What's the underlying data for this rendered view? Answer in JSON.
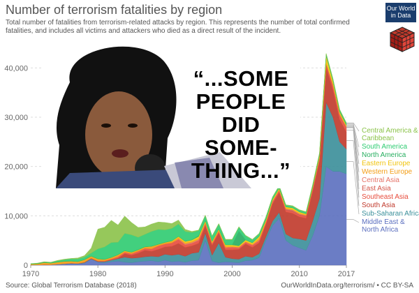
{
  "header": {
    "title": "Number of terrorism fatalities by region",
    "subtitle": "Total number of fatalities from terrorism-related attacks by region. This represents the number of total confirmed fatalities, and includes all victims and attackers who died as a direct result of the incident."
  },
  "logo": {
    "line1": "Our World",
    "line2": "in Data"
  },
  "overlay": {
    "quote_lines": [
      "“...SOME",
      "PEOPLE",
      "DID",
      "SOME-",
      "THING...”"
    ]
  },
  "footer": {
    "source": "Source: Global Terrorism Database (2018)",
    "credit": "OurWorldInData.org/terrorism/ • CC BY-SA"
  },
  "chart_data": {
    "type": "area",
    "stacked": true,
    "title": "Number of terrorism fatalities by region",
    "x_ticks": [
      1970,
      1980,
      1990,
      2000,
      2010,
      2017
    ],
    "y_ticks": [
      0,
      10000,
      20000,
      30000,
      40000
    ],
    "y_tick_labels": [
      "0",
      "10,000",
      "20,000",
      "30,000",
      "40,000"
    ],
    "xlim": [
      1970,
      2017
    ],
    "ylim": [
      0,
      45000
    ],
    "grid": true,
    "legend_position": "right",
    "x": [
      1970,
      1971,
      1972,
      1973,
      1974,
      1975,
      1976,
      1977,
      1978,
      1979,
      1980,
      1981,
      1982,
      1983,
      1984,
      1985,
      1986,
      1987,
      1988,
      1989,
      1990,
      1991,
      1992,
      1993,
      1994,
      1995,
      1996,
      1997,
      1998,
      1999,
      2000,
      2001,
      2002,
      2003,
      2004,
      2005,
      2006,
      2007,
      2008,
      2009,
      2010,
      2011,
      2012,
      2013,
      2014,
      2015,
      2016,
      2017
    ],
    "series": [
      {
        "name": "Middle East & North Africa",
        "color": "#5b6fbf",
        "values": [
          20,
          30,
          80,
          60,
          150,
          200,
          300,
          250,
          400,
          1200,
          600,
          500,
          700,
          800,
          600,
          500,
          700,
          800,
          900,
          700,
          1000,
          700,
          800,
          600,
          900,
          1000,
          5000,
          800,
          500,
          700,
          600,
          500,
          900,
          1000,
          1500,
          5000,
          8000,
          9500,
          5000,
          4000,
          3500,
          3000,
          6000,
          10000,
          20000,
          19000,
          19000,
          18500
        ]
      },
      {
        "name": "Sub-Saharan Africa",
        "color": "#3a8f9a",
        "values": [
          5,
          5,
          10,
          10,
          20,
          50,
          50,
          50,
          100,
          100,
          100,
          200,
          300,
          500,
          1000,
          900,
          800,
          900,
          900,
          1000,
          1200,
          1300,
          1400,
          1200,
          1500,
          1600,
          1500,
          1200,
          4000,
          900,
          700,
          700,
          900,
          600,
          800,
          700,
          900,
          1200,
          1300,
          1500,
          1800,
          2000,
          3000,
          3500,
          13000,
          11000,
          6000,
          5000
        ]
      },
      {
        "name": "South Asia",
        "color": "#c0392b",
        "values": [
          5,
          5,
          5,
          10,
          10,
          20,
          20,
          20,
          50,
          50,
          50,
          50,
          50,
          100,
          700,
          600,
          900,
          1300,
          1000,
          1500,
          1500,
          1800,
          2200,
          1800,
          1500,
          1800,
          1500,
          2000,
          2000,
          1500,
          1800,
          2000,
          2500,
          2000,
          2200,
          2500,
          3500,
          4000,
          4500,
          5000,
          4500,
          4500,
          6000,
          7500,
          7000,
          5500,
          4500,
          3500
        ]
      },
      {
        "name": "Southeast Asia",
        "color": "#e74c3c",
        "values": [
          5,
          5,
          5,
          10,
          10,
          20,
          20,
          20,
          30,
          50,
          100,
          100,
          200,
          300,
          300,
          300,
          400,
          400,
          500,
          700,
          600,
          700,
          800,
          500,
          500,
          600,
          400,
          300,
          300,
          400,
          500,
          300,
          300,
          400,
          400,
          300,
          300,
          300,
          300,
          300,
          300,
          300,
          300,
          400,
          500,
          600,
          700,
          800
        ]
      },
      {
        "name": "East Asia",
        "color": "#d35447",
        "values": [
          0,
          0,
          0,
          0,
          0,
          0,
          0,
          0,
          0,
          0,
          0,
          0,
          0,
          0,
          0,
          0,
          0,
          0,
          0,
          0,
          0,
          0,
          0,
          0,
          0,
          0,
          0,
          0,
          0,
          0,
          0,
          0,
          0,
          0,
          0,
          0,
          100,
          100,
          200,
          300,
          200,
          200,
          200,
          200,
          300,
          300,
          200,
          100
        ]
      },
      {
        "name": "Central Asia",
        "color": "#e57368",
        "values": [
          0,
          0,
          0,
          0,
          0,
          0,
          0,
          0,
          0,
          0,
          0,
          0,
          0,
          0,
          0,
          0,
          0,
          0,
          0,
          0,
          0,
          0,
          100,
          200,
          200,
          200,
          100,
          100,
          100,
          100,
          100,
          100,
          100,
          100,
          200,
          100,
          100,
          100,
          100,
          100,
          100,
          100,
          100,
          100,
          100,
          100,
          100,
          100
        ]
      },
      {
        "name": "Western Europe",
        "color": "#f39c12",
        "values": [
          150,
          200,
          400,
          300,
          400,
          450,
          400,
          350,
          500,
          400,
          400,
          300,
          300,
          400,
          300,
          300,
          300,
          300,
          500,
          300,
          300,
          300,
          300,
          200,
          200,
          200,
          200,
          200,
          200,
          200,
          100,
          100,
          100,
          100,
          300,
          200,
          100,
          100,
          100,
          100,
          100,
          100,
          100,
          100,
          100,
          200,
          300,
          200
        ]
      },
      {
        "name": "Eastern Europe",
        "color": "#f1c40f",
        "values": [
          0,
          0,
          0,
          0,
          0,
          0,
          0,
          0,
          0,
          0,
          0,
          0,
          0,
          0,
          0,
          0,
          0,
          0,
          0,
          0,
          0,
          100,
          200,
          300,
          300,
          400,
          300,
          200,
          200,
          300,
          300,
          200,
          300,
          300,
          400,
          300,
          300,
          300,
          300,
          300,
          300,
          200,
          300,
          500,
          1500,
          700,
          300,
          200
        ]
      },
      {
        "name": "North America",
        "color": "#27ae60",
        "values": [
          50,
          60,
          80,
          50,
          70,
          60,
          70,
          50,
          50,
          50,
          50,
          40,
          40,
          40,
          40,
          40,
          40,
          40,
          40,
          40,
          40,
          40,
          40,
          40,
          40,
          200,
          40,
          40,
          40,
          40,
          40,
          3000,
          40,
          40,
          40,
          40,
          40,
          40,
          40,
          40,
          40,
          40,
          40,
          40,
          40,
          40,
          100,
          100
        ]
      },
      {
        "name": "South America",
        "color": "#2ecc71",
        "values": [
          30,
          50,
          50,
          100,
          200,
          300,
          400,
          500,
          500,
          600,
          2000,
          2500,
          3000,
          2500,
          3500,
          3500,
          2500,
          2500,
          3000,
          3000,
          2500,
          2500,
          2500,
          2000,
          1500,
          1000,
          1000,
          1000,
          1000,
          1000,
          1000,
          800,
          800,
          600,
          500,
          500,
          400,
          400,
          300,
          300,
          300,
          300,
          300,
          300,
          300,
          300,
          300,
          300
        ]
      },
      {
        "name": "Central America & Caribbean",
        "color": "#8bc34a",
        "values": [
          30,
          50,
          50,
          50,
          100,
          100,
          100,
          200,
          300,
          1000,
          4000,
          4000,
          4500,
          3500,
          3500,
          2500,
          2000,
          1500,
          1500,
          1500,
          1500,
          1000,
          800,
          400,
          200,
          100,
          100,
          100,
          100,
          100,
          100,
          100,
          100,
          100,
          100,
          100,
          100,
          100,
          100,
          100,
          100,
          100,
          100,
          100,
          100,
          100,
          100,
          100
        ]
      }
    ]
  }
}
